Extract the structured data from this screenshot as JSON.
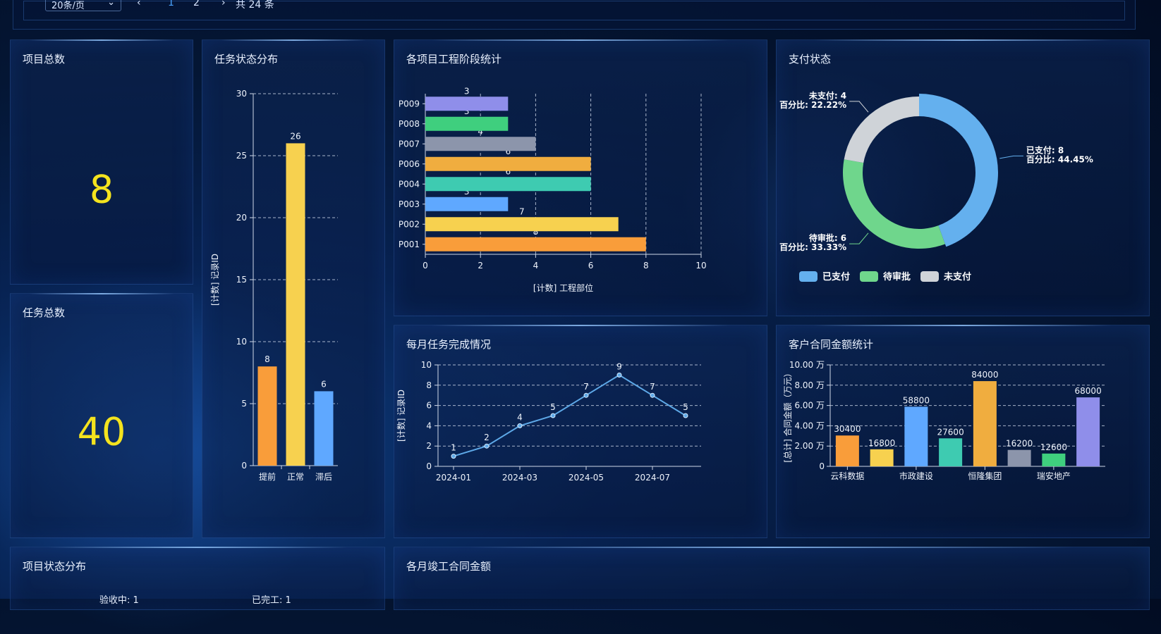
{
  "pagination": {
    "page_size": "20条/页",
    "prev": "‹",
    "page1": "1",
    "page2": "2",
    "next": "›",
    "total": "共 24 条"
  },
  "panels": {
    "project_total": {
      "title": "项目总数",
      "value": "8"
    },
    "task_total": {
      "title": "任务总数",
      "value": "40"
    },
    "task_status": {
      "title": "任务状态分布"
    },
    "stage_stats": {
      "title": "各项目工程阶段统计"
    },
    "payment": {
      "title": "支付状态"
    },
    "monthly_tasks": {
      "title": "每月任务完成情况"
    },
    "contract_amount": {
      "title": "客户合同金额统计"
    },
    "project_status": {
      "title": "项目状态分布",
      "labels": [
        "验收中: 1",
        "已完工: 1"
      ]
    },
    "monthly_completed": {
      "title": "各月竣工合同金额"
    }
  },
  "chart_data": [
    {
      "id": "task_status",
      "type": "bar",
      "categories": [
        "提前",
        "正常",
        "滞后"
      ],
      "values": [
        8,
        26,
        6
      ],
      "colors": [
        "#f99d3a",
        "#f7d14f",
        "#5fa8ff"
      ],
      "ylabel": "[计数] 记录ID",
      "ylim": [
        0,
        30
      ],
      "yticks": [
        "0",
        "5",
        "10",
        "15",
        "20",
        "25",
        "30"
      ],
      "grid": true
    },
    {
      "id": "stage_stats",
      "type": "bar",
      "orientation": "horizontal",
      "categories": [
        "P001",
        "P002",
        "P003",
        "P004",
        "P006",
        "P007",
        "P008",
        "P009"
      ],
      "values": [
        8,
        7,
        3,
        6,
        6,
        4,
        3,
        3
      ],
      "colors": [
        "#f99d3a",
        "#f7d14f",
        "#5fa8ff",
        "#3ecbb1",
        "#f0ad3f",
        "#8c95ab",
        "#3fcf7e",
        "#8f8eea"
      ],
      "xlabel": "[计数] 工程部位",
      "xlim": [
        0,
        10
      ],
      "xticks": [
        "0",
        "2",
        "4",
        "6",
        "8",
        "10"
      ],
      "grid": true
    },
    {
      "id": "payment",
      "type": "pie",
      "donut": true,
      "slices": [
        {
          "name": "已支付",
          "value": 8,
          "percent": "44.45%",
          "color": "#64b0ee",
          "label": "已支付: 8",
          "pct_label": "百分比: 44.45%"
        },
        {
          "name": "待审批",
          "value": 6,
          "percent": "33.33%",
          "color": "#6fd68c",
          "label": "待审批: 6",
          "pct_label": "百分比: 33.33%"
        },
        {
          "name": "未支付",
          "value": 4,
          "percent": "22.22%",
          "color": "#cfd3d8",
          "label": "未支付: 4",
          "pct_label": "百分比: 22.22%"
        }
      ],
      "legend": [
        "已支付",
        "待审批",
        "未支付"
      ],
      "legend_position": "bottom-left"
    },
    {
      "id": "monthly_tasks",
      "type": "line",
      "x": [
        "2024-01",
        "2024-02",
        "2024-03",
        "2024-04",
        "2024-05",
        "2024-06",
        "2024-07",
        "2024-08"
      ],
      "values": [
        1,
        2,
        4,
        5,
        7,
        9,
        7,
        5
      ],
      "xtick_labels": [
        "2024-01",
        "2024-03",
        "2024-05",
        "2024-07"
      ],
      "ylabel": "[计数] 记录ID",
      "ylim": [
        0,
        10
      ],
      "yticks": [
        "0",
        "2",
        "4",
        "6",
        "8",
        "10"
      ],
      "color": "#5ea9e8",
      "grid": true
    },
    {
      "id": "contract_amount",
      "type": "bar",
      "values": [
        30400,
        16800,
        58800,
        27600,
        84000,
        16200,
        12600,
        68000
      ],
      "colors": [
        "#f99d3a",
        "#f7d14f",
        "#5fa8ff",
        "#3ecbb1",
        "#f0ad3f",
        "#8c95ab",
        "#3fcf7e",
        "#8f8eea"
      ],
      "xtick_labels": [
        "云科数据",
        "市政建设",
        "恒隆集团",
        "瑞安地产"
      ],
      "ylabel": "[总计] 合同金额（万元）",
      "ylim": [
        0,
        100000
      ],
      "yticks": [
        "0",
        "2.00 万",
        "4.00 万",
        "6.00 万",
        "8.00 万",
        "10.00 万"
      ],
      "grid": true
    }
  ]
}
